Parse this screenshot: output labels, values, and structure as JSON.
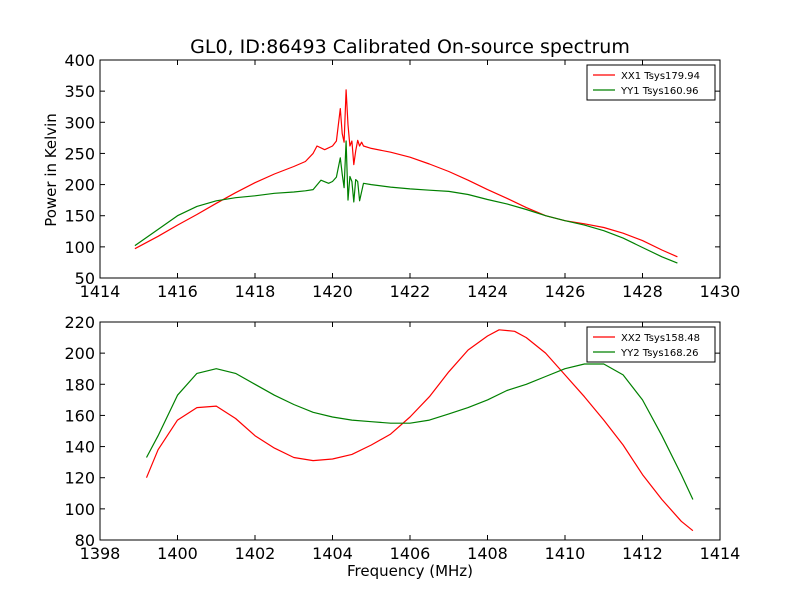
{
  "chart_data": [
    {
      "type": "line",
      "title": "GL0, ID:86493 Calibrated On-source spectrum",
      "xlabel": "",
      "ylabel": "Power in Kelvin",
      "xlim": [
        1414,
        1430
      ],
      "ylim": [
        50,
        400
      ],
      "xticks": [
        1414,
        1416,
        1418,
        1420,
        1422,
        1424,
        1426,
        1428,
        1430
      ],
      "yticks": [
        50,
        100,
        150,
        200,
        250,
        300,
        350,
        400
      ],
      "grid": false,
      "legend_position": "top-right",
      "series": [
        {
          "name": "XX1 Tsys179.94",
          "color": "#ff0000",
          "x": [
            1414.9,
            1415.5,
            1416,
            1416.5,
            1417,
            1417.5,
            1418,
            1418.5,
            1419,
            1419.3,
            1419.5,
            1419.6,
            1419.8,
            1420.0,
            1420.1,
            1420.2,
            1420.25,
            1420.3,
            1420.35,
            1420.4,
            1420.45,
            1420.5,
            1420.55,
            1420.6,
            1420.65,
            1420.7,
            1420.75,
            1420.8,
            1421,
            1421.5,
            1422,
            1422.5,
            1423,
            1423.5,
            1424,
            1424.5,
            1425,
            1425.5,
            1426,
            1426.5,
            1427,
            1427.5,
            1428,
            1428.5,
            1428.9
          ],
          "y": [
            97,
            117,
            135,
            152,
            170,
            187,
            203,
            217,
            229,
            237,
            250,
            262,
            256,
            262,
            270,
            322,
            282,
            268,
            352,
            296,
            262,
            270,
            232,
            254,
            271,
            262,
            268,
            262,
            258,
            252,
            244,
            233,
            221,
            207,
            192,
            178,
            163,
            150,
            142,
            137,
            131,
            122,
            110,
            95,
            84
          ]
        },
        {
          "name": "YY1 Tsys160.96",
          "color": "#008000",
          "x": [
            1414.9,
            1415.5,
            1416,
            1416.5,
            1417,
            1417.5,
            1418,
            1418.5,
            1419,
            1419.3,
            1419.5,
            1419.7,
            1419.9,
            1420.0,
            1420.1,
            1420.2,
            1420.25,
            1420.3,
            1420.35,
            1420.4,
            1420.45,
            1420.5,
            1420.55,
            1420.6,
            1420.65,
            1420.7,
            1420.8,
            1421,
            1421.5,
            1422,
            1422.5,
            1423,
            1423.5,
            1424,
            1424.5,
            1425,
            1425.5,
            1426,
            1426.5,
            1427,
            1427.5,
            1428,
            1428.5,
            1428.9
          ],
          "y": [
            102,
            128,
            150,
            165,
            174,
            179,
            182,
            186,
            188,
            190,
            192,
            207,
            202,
            205,
            212,
            243,
            217,
            195,
            270,
            175,
            213,
            205,
            172,
            208,
            205,
            174,
            202,
            200,
            196,
            193,
            191,
            189,
            184,
            176,
            169,
            160,
            150,
            142,
            135,
            126,
            114,
            99,
            84,
            74
          ]
        }
      ]
    },
    {
      "type": "line",
      "title": "",
      "xlabel": "Frequency (MHz)",
      "ylabel": "",
      "xlim": [
        1398,
        1414
      ],
      "ylim": [
        80,
        220
      ],
      "xticks": [
        1398,
        1400,
        1402,
        1404,
        1406,
        1408,
        1410,
        1412,
        1414
      ],
      "yticks": [
        80,
        100,
        120,
        140,
        160,
        180,
        200,
        220
      ],
      "grid": false,
      "legend_position": "top-right",
      "series": [
        {
          "name": "XX2 Tsys158.48",
          "color": "#ff0000",
          "x": [
            1399.2,
            1399.5,
            1400,
            1400.5,
            1401,
            1401.5,
            1402,
            1402.5,
            1403,
            1403.5,
            1404,
            1404.5,
            1405,
            1405.5,
            1406,
            1406.5,
            1407,
            1407.5,
            1408,
            1408.3,
            1408.7,
            1409,
            1409.5,
            1410,
            1410.5,
            1411,
            1411.5,
            1412,
            1412.5,
            1413,
            1413.3
          ],
          "y": [
            120,
            138,
            157,
            165,
            166,
            158,
            147,
            139,
            133,
            131,
            132,
            135,
            141,
            148,
            159,
            172,
            188,
            202,
            211,
            215,
            214,
            210,
            200,
            186,
            172,
            157,
            141,
            122,
            106,
            92,
            86
          ]
        },
        {
          "name": "YY2 Tsys168.26",
          "color": "#008000",
          "x": [
            1399.2,
            1399.5,
            1400,
            1400.5,
            1401,
            1401.5,
            1402,
            1402.5,
            1403,
            1403.5,
            1404,
            1404.5,
            1405,
            1405.5,
            1406,
            1406.5,
            1407,
            1407.5,
            1408,
            1408.5,
            1409,
            1409.5,
            1410,
            1410.5,
            1411,
            1411.5,
            1412,
            1412.5,
            1413,
            1413.3
          ],
          "y": [
            133,
            147,
            173,
            187,
            190,
            187,
            180,
            173,
            167,
            162,
            159,
            157,
            156,
            155,
            155,
            157,
            161,
            165,
            170,
            176,
            180,
            185,
            190,
            193,
            193,
            186,
            170,
            147,
            122,
            106
          ]
        }
      ]
    }
  ]
}
